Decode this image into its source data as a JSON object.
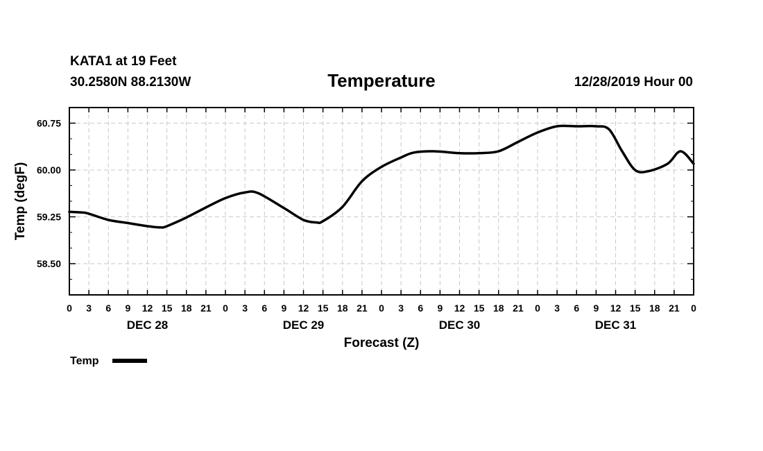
{
  "header": {
    "station": "KATA1 at 19 Feet",
    "coords": "30.2580N 88.2130W",
    "title": "Temperature",
    "issued": "12/28/2019 Hour 00"
  },
  "chart_data": {
    "type": "line",
    "title": "Temperature",
    "xlabel": "Forecast (Z)",
    "ylabel": "Temp (degF)",
    "xlim": [
      0,
      96
    ],
    "ylim": [
      58.0,
      61.0
    ],
    "grid": true,
    "x_tick_labels": [
      "0",
      "3",
      "6",
      "9",
      "12",
      "15",
      "18",
      "21",
      "0",
      "3",
      "6",
      "9",
      "12",
      "15",
      "18",
      "21",
      "0",
      "3",
      "6",
      "9",
      "12",
      "15",
      "18",
      "21",
      "0",
      "3",
      "6",
      "9",
      "12",
      "15",
      "18",
      "21",
      "0"
    ],
    "y_ticks": [
      58.5,
      59.25,
      60.0,
      60.75
    ],
    "y_tick_labels": [
      "58.50",
      "59.25",
      "60.00",
      "60.75"
    ],
    "day_labels": [
      {
        "label": "DEC 28",
        "at_hour": 12
      },
      {
        "label": "DEC 29",
        "at_hour": 36
      },
      {
        "label": "DEC 30",
        "at_hour": 60
      },
      {
        "label": "DEC 31",
        "at_hour": 84
      }
    ],
    "series": [
      {
        "name": "Temp",
        "color": "#000000",
        "x": [
          0,
          2,
          3,
          6,
          9,
          12,
          14,
          15,
          18,
          21,
          24,
          27,
          29,
          33,
          36,
          38,
          39,
          42,
          45,
          48,
          51,
          53,
          56,
          60,
          63,
          66,
          69,
          72,
          75,
          78,
          81,
          83,
          85,
          87,
          89,
          92,
          94,
          96
        ],
        "y": [
          59.33,
          59.32,
          59.3,
          59.2,
          59.15,
          59.1,
          59.08,
          59.1,
          59.24,
          59.4,
          59.55,
          59.64,
          59.63,
          59.39,
          59.2,
          59.16,
          59.18,
          59.41,
          59.82,
          60.05,
          60.2,
          60.28,
          60.3,
          60.27,
          60.27,
          60.3,
          60.45,
          60.6,
          60.7,
          60.7,
          60.7,
          60.65,
          60.3,
          60.0,
          59.98,
          60.1,
          60.3,
          60.1
        ]
      }
    ],
    "legend": {
      "label": "Temp",
      "placement": "bottom-left"
    }
  }
}
